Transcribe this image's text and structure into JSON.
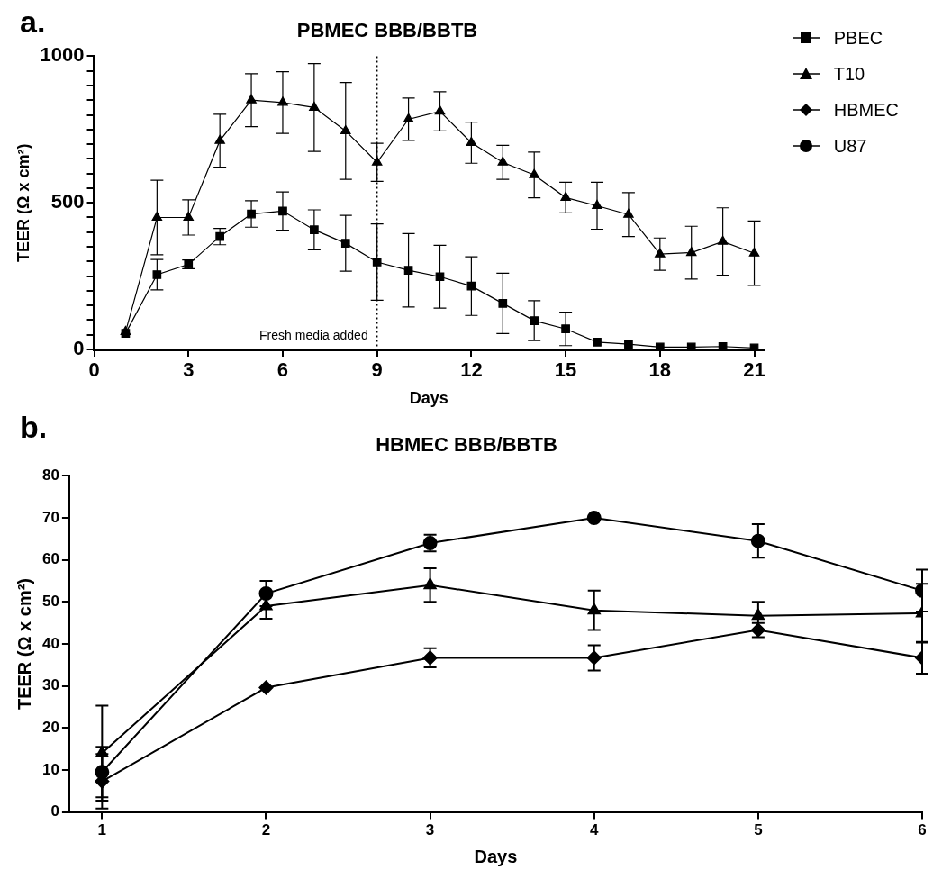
{
  "chart_data": [
    {
      "type": "line",
      "title": "PBMEC BBB/BBTB",
      "xlabel": "Days",
      "ylabel": "TEER (Ω x cm²)",
      "annotations": [
        "a."
      ],
      "xlim": [
        0,
        21.3
      ],
      "xticks": [
        0,
        3,
        6,
        9,
        12,
        15,
        18,
        21
      ],
      "ylim": [
        0,
        1000
      ],
      "yticks": [
        0,
        {
          "value": 50,
          "label": null
        },
        {
          "value": 100,
          "label": null
        },
        {
          "value": 150,
          "label": null
        },
        {
          "value": 200,
          "label": null
        },
        {
          "value": 250,
          "label": null
        },
        {
          "value": 300,
          "label": null
        },
        {
          "value": 350,
          "label": null
        },
        {
          "value": 400,
          "label": null
        },
        {
          "value": 450,
          "label": null
        },
        500,
        {
          "value": 550,
          "label": null
        },
        {
          "value": 600,
          "label": null
        },
        {
          "value": 650,
          "label": null
        },
        {
          "value": 700,
          "label": null
        },
        {
          "value": 750,
          "label": null
        },
        {
          "value": 800,
          "label": null
        },
        {
          "value": 850,
          "label": null
        },
        {
          "value": 900,
          "label": null
        },
        {
          "value": 950,
          "label": null
        },
        1000
      ],
      "x": [
        1,
        2,
        3,
        4,
        5,
        6,
        7,
        8,
        9,
        10,
        11,
        12,
        13,
        14,
        15,
        16,
        17,
        18,
        19,
        20,
        21
      ],
      "grid": false,
      "legend": "top right",
      "ref_lines": [
        {
          "axis": "x",
          "value": 9,
          "label": "Fresh media added",
          "line_style": "dotted",
          "color": "#000000"
        }
      ],
      "series": [
        {
          "name": "PBEC",
          "color": "#000000",
          "marker": "square",
          "values": [
            55,
            255,
            290,
            385,
            462,
            472,
            408,
            362,
            298,
            270,
            248,
            216,
            157,
            98,
            70,
            25,
            18,
            8,
            8,
            10,
            5
          ],
          "errors": [
            null,
            52,
            15,
            28,
            45,
            65,
            68,
            95,
            130,
            125,
            107,
            100,
            103,
            68,
            57,
            null,
            null,
            null,
            null,
            null,
            null
          ]
        },
        {
          "name": "T10",
          "color": "#000000",
          "marker": "triangle",
          "values": [
            60,
            450,
            450,
            712,
            850,
            842,
            825,
            745,
            638,
            785,
            812,
            705,
            638,
            595,
            518,
            490,
            460,
            325,
            330,
            368,
            328
          ],
          "errors": [
            null,
            127,
            60,
            90,
            90,
            105,
            150,
            165,
            65,
            72,
            67,
            70,
            58,
            78,
            52,
            80,
            75,
            55,
            90,
            115,
            110
          ]
        }
      ]
    },
    {
      "type": "line",
      "title": "HBMEC BBB/BBTB",
      "xlabel": "Days",
      "ylabel": "TEER (Ω x cm²)",
      "annotations": [
        "b."
      ],
      "xlim": [
        0.8,
        6
      ],
      "xticks": [
        1,
        2,
        3,
        4,
        5,
        6
      ],
      "ylim": [
        0,
        80
      ],
      "yticks": [
        0,
        10,
        20,
        30,
        40,
        50,
        60,
        70,
        80
      ],
      "x": [
        1,
        2,
        3,
        4,
        5,
        6
      ],
      "grid": false,
      "legend": false,
      "series": [
        {
          "name": "HBMEC",
          "color": "#000000",
          "marker": "diamond",
          "values": [
            7.3,
            29.6,
            36.7,
            36.7,
            43.3,
            36.7
          ],
          "errors": [
            6.5,
            null,
            2.3,
            3,
            1.7,
            3.8
          ]
        },
        {
          "name": "T10",
          "color": "#000000",
          "marker": "triangle",
          "values": [
            14,
            49,
            54,
            48,
            46.7,
            47.3
          ],
          "errors": [
            11.3,
            3,
            4,
            4.7,
            3.3,
            7
          ]
        },
        {
          "name": "U87",
          "color": "#000000",
          "marker": "circle",
          "values": [
            9.5,
            52,
            64,
            70,
            64.5,
            52.7
          ],
          "errors": [
            6,
            3,
            2,
            null,
            4,
            5
          ]
        }
      ]
    }
  ]
}
